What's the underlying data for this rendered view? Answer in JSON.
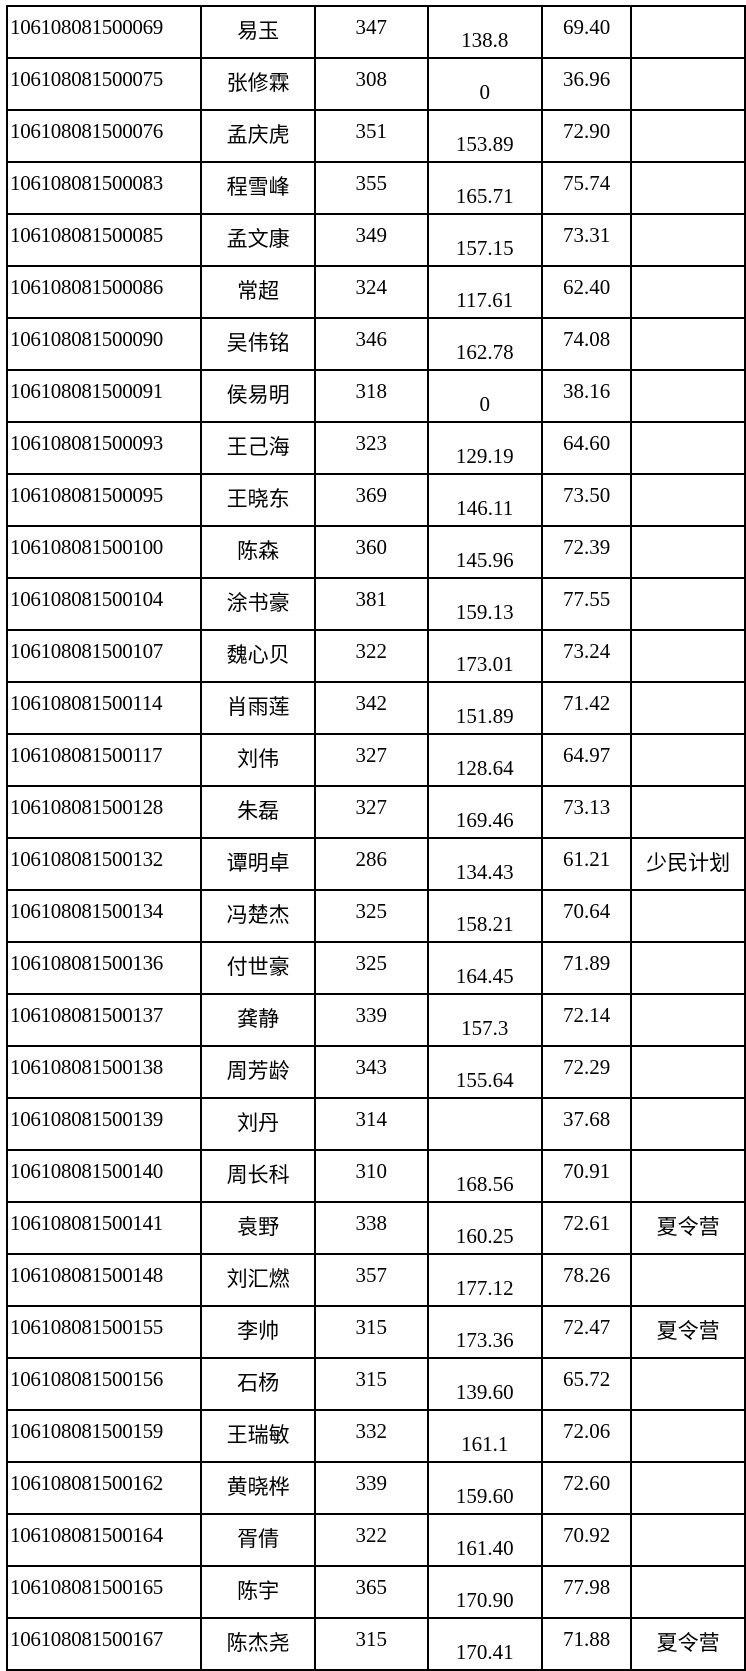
{
  "table": {
    "rows": [
      [
        "106108081500069",
        "易玉",
        "347",
        "138.8",
        "69.40",
        ""
      ],
      [
        "106108081500075",
        "张修霖",
        "308",
        "0",
        "36.96",
        ""
      ],
      [
        "106108081500076",
        "孟庆虎",
        "351",
        "153.89",
        "72.90",
        ""
      ],
      [
        "106108081500083",
        "程雪峰",
        "355",
        "165.71",
        "75.74",
        ""
      ],
      [
        "106108081500085",
        "孟文康",
        "349",
        "157.15",
        "73.31",
        ""
      ],
      [
        "106108081500086",
        "常超",
        "324",
        "117.61",
        "62.40",
        ""
      ],
      [
        "106108081500090",
        "吴伟铭",
        "346",
        "162.78",
        "74.08",
        ""
      ],
      [
        "106108081500091",
        "侯易明",
        "318",
        "0",
        "38.16",
        ""
      ],
      [
        "106108081500093",
        "王己海",
        "323",
        "129.19",
        "64.60",
        ""
      ],
      [
        "106108081500095",
        "王晓东",
        "369",
        "146.11",
        "73.50",
        ""
      ],
      [
        "106108081500100",
        "陈森",
        "360",
        "145.96",
        "72.39",
        ""
      ],
      [
        "106108081500104",
        "涂书豪",
        "381",
        "159.13",
        "77.55",
        ""
      ],
      [
        "106108081500107",
        "魏心贝",
        "322",
        "173.01",
        "73.24",
        ""
      ],
      [
        "106108081500114",
        "肖雨莲",
        "342",
        "151.89",
        "71.42",
        ""
      ],
      [
        "106108081500117",
        "刘伟",
        "327",
        "128.64",
        "64.97",
        ""
      ],
      [
        "106108081500128",
        "朱磊",
        "327",
        "169.46",
        "73.13",
        ""
      ],
      [
        "106108081500132",
        "谭明卓",
        "286",
        "134.43",
        "61.21",
        "少民计划"
      ],
      [
        "106108081500134",
        "冯楚杰",
        "325",
        "158.21",
        "70.64",
        ""
      ],
      [
        "106108081500136",
        "付世豪",
        "325",
        "164.45",
        "71.89",
        ""
      ],
      [
        "106108081500137",
        "龚静",
        "339",
        "157.3",
        "72.14",
        ""
      ],
      [
        "106108081500138",
        "周芳龄",
        "343",
        "155.64",
        "72.29",
        ""
      ],
      [
        "106108081500139",
        "刘丹",
        "314",
        "",
        "37.68",
        ""
      ],
      [
        "106108081500140",
        "周长科",
        "310",
        "168.56",
        "70.91",
        ""
      ],
      [
        "106108081500141",
        "袁野",
        "338",
        "160.25",
        "72.61",
        "夏令营"
      ],
      [
        "106108081500148",
        "刘汇燃",
        "357",
        "177.12",
        "78.26",
        ""
      ],
      [
        "106108081500155",
        "李帅",
        "315",
        "173.36",
        "72.47",
        "夏令营"
      ],
      [
        "106108081500156",
        "石杨",
        "315",
        "139.60",
        "65.72",
        ""
      ],
      [
        "106108081500159",
        "王瑞敏",
        "332",
        "161.1",
        "72.06",
        ""
      ],
      [
        "106108081500162",
        "黄晓桦",
        "339",
        "159.60",
        "72.60",
        ""
      ],
      [
        "106108081500164",
        "胥倩",
        "322",
        "161.40",
        "70.92",
        ""
      ],
      [
        "106108081500165",
        "陈宇",
        "365",
        "170.90",
        "77.98",
        ""
      ],
      [
        "106108081500167",
        "陈杰尧",
        "315",
        "170.41",
        "71.88",
        "夏令营"
      ]
    ]
  }
}
